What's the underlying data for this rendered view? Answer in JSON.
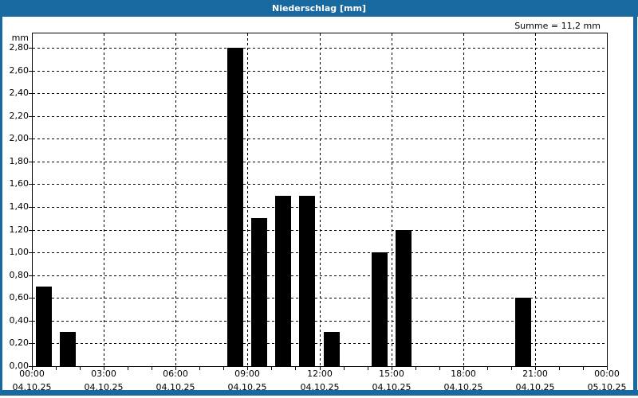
{
  "window": {
    "title": "Niederschlag [mm]",
    "summary": "Summe = 11,2 mm"
  },
  "colors": {
    "titlebar": "#18699F",
    "window_border": "#18699F",
    "background": "#FFFFFF",
    "bar": "#000000",
    "grid": "#000000"
  },
  "chart_data": {
    "type": "bar",
    "title": "Niederschlag [mm]",
    "summary": "Summe = 11,2 mm",
    "ylabel_unit": "mm",
    "ylim": [
      0,
      2.93
    ],
    "ytick_step": 0.2,
    "ytick_labels": [
      "0,00",
      "0,20",
      "0,40",
      "0,60",
      "0,80",
      "1,00",
      "1,20",
      "1,40",
      "1,60",
      "1,80",
      "2,00",
      "2,20",
      "2,40",
      "2,60",
      "2,80"
    ],
    "grid": "dashed",
    "xlim_hours": [
      0,
      24
    ],
    "xticks": [
      {
        "hour": 0,
        "time": "00:00",
        "date": "04.10.25"
      },
      {
        "hour": 3,
        "time": "03:00",
        "date": "04.10.25"
      },
      {
        "hour": 6,
        "time": "06:00",
        "date": "04.10.25"
      },
      {
        "hour": 9,
        "time": "09:00",
        "date": "04.10.25"
      },
      {
        "hour": 12,
        "time": "12:00",
        "date": "04.10.25"
      },
      {
        "hour": 15,
        "time": "15:00",
        "date": "04.10.25"
      },
      {
        "hour": 18,
        "time": "18:00",
        "date": "04.10.25"
      },
      {
        "hour": 21,
        "time": "21:00",
        "date": "04.10.25"
      },
      {
        "hour": 24,
        "time": "00:00",
        "date": "05.10.25"
      }
    ],
    "bars_hourly_mm": [
      {
        "start_hour": 0,
        "value_mm": 0.7
      },
      {
        "start_hour": 1,
        "value_mm": 0.3
      },
      {
        "start_hour": 8,
        "value_mm": 2.8
      },
      {
        "start_hour": 9,
        "value_mm": 1.3
      },
      {
        "start_hour": 10,
        "value_mm": 1.5
      },
      {
        "start_hour": 11,
        "value_mm": 1.5
      },
      {
        "start_hour": 12,
        "value_mm": 0.3
      },
      {
        "start_hour": 14,
        "value_mm": 1.0
      },
      {
        "start_hour": 15,
        "value_mm": 1.2
      },
      {
        "start_hour": 20,
        "value_mm": 0.6
      }
    ],
    "total_mm": 11.2
  }
}
